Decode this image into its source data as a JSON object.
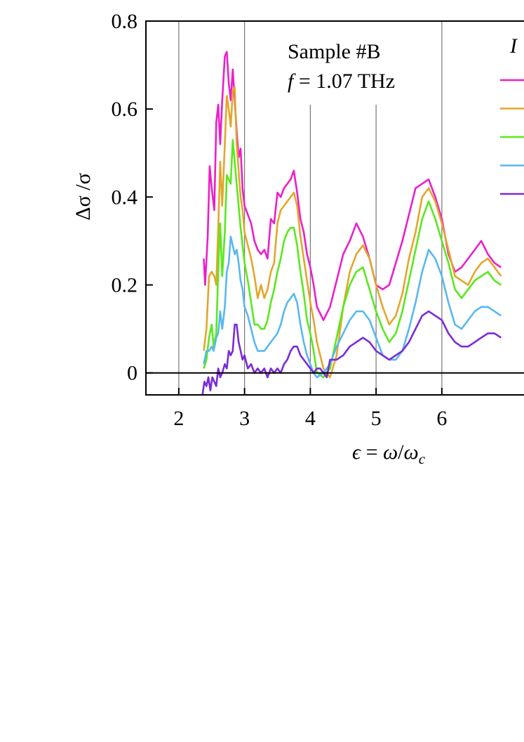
{
  "chart_data": {
    "type": "line",
    "annotation": {
      "line1": "Sample #B",
      "line2_italic": "f",
      "line2_rest": " = 1.07 THz"
    },
    "legend_title": "I",
    "xlabel": "ϵ = ω/ωc",
    "xlabel_parts": {
      "eps": "ϵ",
      "eq": " = ",
      "omega": "ω",
      "slash": "/",
      "omega_c": "ω",
      "sub": "c"
    },
    "ylabel": "Δσ /σ",
    "xlim": [
      1.5,
      7.9
    ],
    "ylim": [
      -0.05,
      0.8
    ],
    "xticks": [
      2,
      3,
      4,
      5,
      6
    ],
    "xtick_labels": [
      "2",
      "3",
      "4",
      "5",
      "6"
    ],
    "yticks": [
      0,
      0.2,
      0.4,
      0.6,
      0.8
    ],
    "ytick_labels": [
      "0",
      "0.2",
      "0.4",
      "0.6",
      "0.8"
    ],
    "full_gridlines": [
      2,
      3,
      6
    ],
    "partial_gridlines": [
      4,
      5
    ],
    "series": [
      {
        "color": "#ec1fc8",
        "x": [
          2.38,
          2.4,
          2.44,
          2.47,
          2.5,
          2.54,
          2.57,
          2.6,
          2.63,
          2.66,
          2.7,
          2.73,
          2.76,
          2.79,
          2.82,
          2.85,
          2.88,
          2.91,
          2.94,
          2.97,
          3.0,
          3.05,
          3.1,
          3.15,
          3.2,
          3.25,
          3.3,
          3.35,
          3.4,
          3.45,
          3.5,
          3.55,
          3.6,
          3.65,
          3.7,
          3.75,
          3.8,
          3.85,
          3.9,
          3.95,
          4.0,
          4.05,
          4.1,
          4.2,
          4.3,
          4.4,
          4.5,
          4.6,
          4.7,
          4.8,
          4.9,
          5.0,
          5.1,
          5.2,
          5.3,
          5.4,
          5.5,
          5.6,
          5.7,
          5.8,
          5.9,
          6.0,
          6.1,
          6.2,
          6.3,
          6.4,
          6.5,
          6.6,
          6.7,
          6.8,
          6.9
        ],
        "y": [
          0.26,
          0.2,
          0.31,
          0.47,
          0.42,
          0.37,
          0.57,
          0.61,
          0.52,
          0.62,
          0.72,
          0.73,
          0.66,
          0.62,
          0.69,
          0.62,
          0.55,
          0.49,
          0.51,
          0.42,
          0.38,
          0.36,
          0.34,
          0.3,
          0.28,
          0.27,
          0.28,
          0.26,
          0.35,
          0.34,
          0.41,
          0.4,
          0.42,
          0.43,
          0.44,
          0.46,
          0.41,
          0.35,
          0.32,
          0.27,
          0.24,
          0.2,
          0.15,
          0.12,
          0.15,
          0.21,
          0.27,
          0.3,
          0.34,
          0.31,
          0.26,
          0.2,
          0.19,
          0.2,
          0.25,
          0.3,
          0.36,
          0.42,
          0.43,
          0.44,
          0.4,
          0.35,
          0.27,
          0.23,
          0.24,
          0.26,
          0.28,
          0.3,
          0.27,
          0.25,
          0.24
        ]
      },
      {
        "color": "#e3a62c",
        "x": [
          2.38,
          2.42,
          2.46,
          2.5,
          2.54,
          2.57,
          2.6,
          2.63,
          2.66,
          2.7,
          2.73,
          2.76,
          2.79,
          2.82,
          2.85,
          2.88,
          2.91,
          2.94,
          2.97,
          3.0,
          3.05,
          3.1,
          3.15,
          3.2,
          3.25,
          3.3,
          3.35,
          3.4,
          3.45,
          3.5,
          3.55,
          3.6,
          3.65,
          3.7,
          3.75,
          3.8,
          3.85,
          3.9,
          3.95,
          4.0,
          4.05,
          4.1,
          4.2,
          4.3,
          4.4,
          4.5,
          4.6,
          4.7,
          4.8,
          4.9,
          5.0,
          5.1,
          5.2,
          5.3,
          5.4,
          5.5,
          5.6,
          5.7,
          5.8,
          5.9,
          6.0,
          6.1,
          6.2,
          6.3,
          6.4,
          6.5,
          6.6,
          6.7,
          6.8,
          6.9
        ],
        "y": [
          0.05,
          0.1,
          0.22,
          0.23,
          0.22,
          0.2,
          0.33,
          0.48,
          0.38,
          0.52,
          0.63,
          0.6,
          0.56,
          0.64,
          0.65,
          0.52,
          0.46,
          0.4,
          0.37,
          0.32,
          0.29,
          0.26,
          0.22,
          0.17,
          0.2,
          0.17,
          0.19,
          0.23,
          0.25,
          0.34,
          0.37,
          0.38,
          0.39,
          0.4,
          0.41,
          0.38,
          0.31,
          0.26,
          0.21,
          0.16,
          0.12,
          0.07,
          0.01,
          -0.01,
          0.04,
          0.15,
          0.23,
          0.27,
          0.29,
          0.26,
          0.2,
          0.15,
          0.11,
          0.13,
          0.18,
          0.26,
          0.32,
          0.4,
          0.42,
          0.39,
          0.34,
          0.28,
          0.22,
          0.21,
          0.2,
          0.23,
          0.25,
          0.26,
          0.24,
          0.22
        ]
      },
      {
        "color": "#5ae81e",
        "x": [
          2.38,
          2.42,
          2.46,
          2.5,
          2.53,
          2.57,
          2.6,
          2.63,
          2.66,
          2.7,
          2.73,
          2.76,
          2.79,
          2.82,
          2.85,
          2.88,
          2.91,
          2.94,
          2.97,
          3.0,
          3.05,
          3.1,
          3.15,
          3.2,
          3.25,
          3.3,
          3.35,
          3.4,
          3.45,
          3.5,
          3.55,
          3.6,
          3.65,
          3.7,
          3.75,
          3.8,
          3.85,
          3.9,
          3.95,
          4.0,
          4.05,
          4.1,
          4.2,
          4.3,
          4.4,
          4.5,
          4.6,
          4.7,
          4.8,
          4.9,
          5.0,
          5.1,
          5.2,
          5.3,
          5.4,
          5.5,
          5.6,
          5.7,
          5.8,
          5.9,
          6.0,
          6.1,
          6.2,
          6.3,
          6.4,
          6.5,
          6.6,
          6.7,
          6.8,
          6.9
        ],
        "y": [
          0.01,
          0.03,
          0.08,
          0.11,
          0.06,
          0.09,
          0.23,
          0.34,
          0.22,
          0.32,
          0.45,
          0.44,
          0.43,
          0.53,
          0.48,
          0.43,
          0.38,
          0.33,
          0.29,
          0.25,
          0.21,
          0.16,
          0.11,
          0.11,
          0.1,
          0.1,
          0.12,
          0.16,
          0.19,
          0.23,
          0.26,
          0.3,
          0.32,
          0.33,
          0.33,
          0.29,
          0.23,
          0.18,
          0.12,
          0.09,
          0.05,
          0.0,
          -0.01,
          0.01,
          0.08,
          0.15,
          0.2,
          0.23,
          0.24,
          0.19,
          0.14,
          0.1,
          0.07,
          0.09,
          0.14,
          0.21,
          0.28,
          0.35,
          0.39,
          0.35,
          0.3,
          0.25,
          0.19,
          0.17,
          0.19,
          0.21,
          0.22,
          0.23,
          0.21,
          0.2
        ]
      },
      {
        "color": "#58b8f0",
        "x": [
          2.38,
          2.42,
          2.46,
          2.5,
          2.53,
          2.57,
          2.6,
          2.63,
          2.66,
          2.7,
          2.73,
          2.76,
          2.79,
          2.82,
          2.85,
          2.88,
          2.91,
          2.94,
          2.97,
          3.0,
          3.05,
          3.1,
          3.15,
          3.2,
          3.25,
          3.3,
          3.35,
          3.4,
          3.45,
          3.5,
          3.55,
          3.6,
          3.65,
          3.7,
          3.75,
          3.8,
          3.85,
          3.9,
          3.95,
          4.0,
          4.05,
          4.1,
          4.2,
          4.3,
          4.4,
          4.5,
          4.6,
          4.7,
          4.8,
          4.9,
          5.0,
          5.1,
          5.2,
          5.3,
          5.4,
          5.5,
          5.6,
          5.7,
          5.8,
          5.9,
          6.0,
          6.1,
          6.2,
          6.3,
          6.4,
          6.5,
          6.6,
          6.7,
          6.8,
          6.9
        ],
        "y": [
          0.02,
          0.05,
          0.05,
          0.06,
          0.05,
          0.08,
          0.09,
          0.14,
          0.1,
          0.15,
          0.23,
          0.25,
          0.31,
          0.29,
          0.27,
          0.28,
          0.25,
          0.21,
          0.19,
          0.15,
          0.13,
          0.1,
          0.07,
          0.05,
          0.05,
          0.05,
          0.06,
          0.07,
          0.08,
          0.09,
          0.11,
          0.14,
          0.16,
          0.17,
          0.18,
          0.16,
          0.11,
          0.07,
          0.04,
          0.02,
          0.0,
          -0.01,
          0.0,
          0.02,
          0.06,
          0.09,
          0.12,
          0.14,
          0.14,
          0.12,
          0.08,
          0.04,
          0.03,
          0.03,
          0.05,
          0.1,
          0.16,
          0.23,
          0.28,
          0.26,
          0.22,
          0.16,
          0.11,
          0.1,
          0.12,
          0.14,
          0.15,
          0.15,
          0.14,
          0.13
        ]
      },
      {
        "color": "#7a2bd8",
        "x": [
          2.36,
          2.39,
          2.42,
          2.45,
          2.48,
          2.51,
          2.54,
          2.57,
          2.6,
          2.63,
          2.66,
          2.7,
          2.73,
          2.76,
          2.79,
          2.82,
          2.85,
          2.88,
          2.91,
          2.94,
          2.97,
          3.0,
          3.05,
          3.1,
          3.15,
          3.2,
          3.25,
          3.3,
          3.35,
          3.4,
          3.45,
          3.5,
          3.55,
          3.6,
          3.65,
          3.7,
          3.75,
          3.8,
          3.85,
          3.9,
          3.95,
          4.0,
          4.05,
          4.1,
          4.15,
          4.2,
          4.25,
          4.3,
          4.4,
          4.5,
          4.6,
          4.7,
          4.8,
          4.9,
          5.0,
          5.1,
          5.2,
          5.3,
          5.4,
          5.5,
          5.6,
          5.7,
          5.8,
          5.9,
          6.0,
          6.1,
          6.2,
          6.3,
          6.4,
          6.5,
          6.6,
          6.7,
          6.8,
          6.9
        ],
        "y": [
          -0.05,
          -0.02,
          -0.03,
          -0.01,
          -0.04,
          -0.01,
          -0.02,
          -0.03,
          0.01,
          -0.01,
          0.0,
          0.02,
          0.01,
          0.05,
          0.04,
          0.05,
          0.11,
          0.11,
          0.07,
          0.05,
          0.03,
          0.04,
          0.01,
          0.02,
          0.0,
          0.01,
          0.0,
          0.01,
          -0.01,
          0.01,
          0.0,
          0.01,
          0.0,
          0.02,
          0.03,
          0.05,
          0.06,
          0.06,
          0.04,
          0.03,
          0.02,
          0.01,
          0.0,
          0.01,
          0.01,
          0.0,
          -0.01,
          0.03,
          0.03,
          0.04,
          0.06,
          0.07,
          0.08,
          0.07,
          0.05,
          0.04,
          0.03,
          0.04,
          0.05,
          0.07,
          0.1,
          0.13,
          0.14,
          0.13,
          0.12,
          0.09,
          0.07,
          0.06,
          0.06,
          0.07,
          0.08,
          0.09,
          0.09,
          0.08
        ]
      }
    ]
  }
}
